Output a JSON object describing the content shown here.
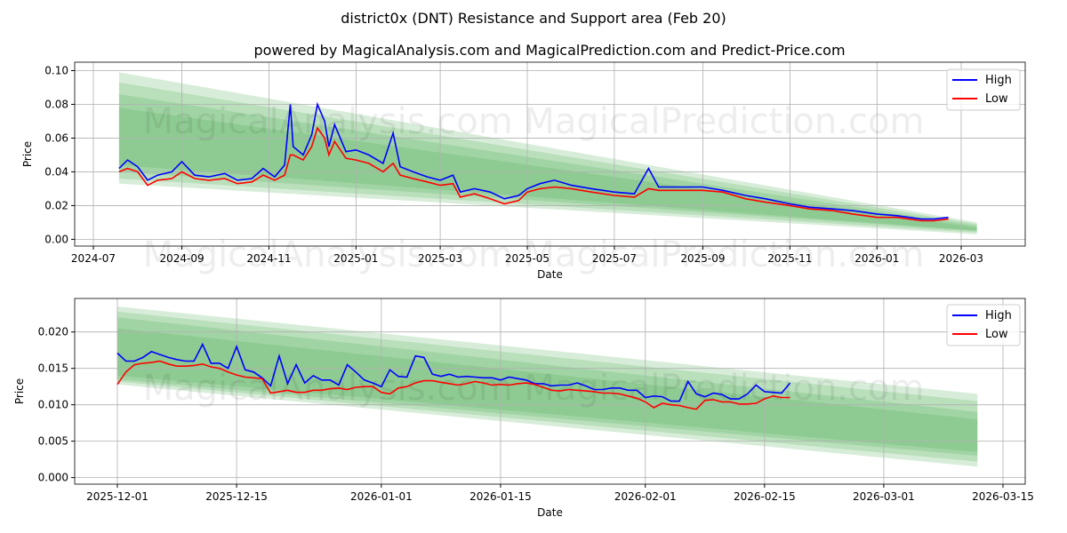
{
  "title": "district0x (DNT) Resistance and Support area (Feb 20)",
  "subtitle": "powered by MagicalAnalysis.com and MagicalPrediction.com and Predict-Price.com",
  "watermark": "MagicalAnalysis.com    MagicalPrediction.com",
  "colors": {
    "high": "#0000ff",
    "low": "#ff0000",
    "band": "#4caf50"
  },
  "chart_data": [
    {
      "type": "line",
      "xlabel": "Date",
      "ylabel": "Price",
      "ylim": [
        -0.004,
        0.105
      ],
      "yticks": [
        "0.00",
        "0.02",
        "0.04",
        "0.06",
        "0.08",
        "0.10"
      ],
      "ytick_values": [
        0,
        0.02,
        0.04,
        0.06,
        0.08,
        0.1
      ],
      "xticks": [
        "2024-07",
        "2024-09",
        "2024-11",
        "2025-01",
        "2025-03",
        "2025-05",
        "2025-07",
        "2025-09",
        "2025-11",
        "2026-01",
        "2026-03"
      ],
      "grid": true,
      "legend": "top-right",
      "legend_entries": [
        "High",
        "Low"
      ],
      "x": [
        "2024-07-19",
        "2024-07-25",
        "2024-08-01",
        "2024-08-08",
        "2024-08-15",
        "2024-08-25",
        "2024-09-01",
        "2024-09-10",
        "2024-09-20",
        "2024-10-01",
        "2024-10-10",
        "2024-10-20",
        "2024-10-28",
        "2024-11-05",
        "2024-11-12",
        "2024-11-16",
        "2024-11-18",
        "2024-11-25",
        "2024-12-01",
        "2024-12-05",
        "2024-12-10",
        "2024-12-13",
        "2024-12-17",
        "2024-12-25",
        "2025-01-01",
        "2025-01-10",
        "2025-01-20",
        "2025-01-27",
        "2025-02-01",
        "2025-02-10",
        "2025-02-20",
        "2025-03-01",
        "2025-03-10",
        "2025-03-15",
        "2025-03-25",
        "2025-04-05",
        "2025-04-15",
        "2025-04-25",
        "2025-05-01",
        "2025-05-10",
        "2025-05-20",
        "2025-06-01",
        "2025-06-15",
        "2025-07-01",
        "2025-07-15",
        "2025-07-25",
        "2025-08-01",
        "2025-08-15",
        "2025-09-01",
        "2025-09-15",
        "2025-10-01",
        "2025-10-15",
        "2025-11-01",
        "2025-11-15",
        "2025-12-01",
        "2025-12-15",
        "2026-01-01",
        "2026-01-15",
        "2026-02-01",
        "2026-02-10",
        "2026-02-20"
      ],
      "series": [
        {
          "name": "High",
          "values": [
            0.042,
            0.047,
            0.043,
            0.035,
            0.038,
            0.04,
            0.046,
            0.038,
            0.037,
            0.039,
            0.035,
            0.036,
            0.042,
            0.037,
            0.044,
            0.08,
            0.055,
            0.05,
            0.062,
            0.08,
            0.07,
            0.055,
            0.068,
            0.052,
            0.053,
            0.05,
            0.045,
            0.063,
            0.043,
            0.04,
            0.037,
            0.035,
            0.038,
            0.028,
            0.03,
            0.028,
            0.024,
            0.026,
            0.03,
            0.033,
            0.035,
            0.032,
            0.03,
            0.028,
            0.027,
            0.042,
            0.031,
            0.031,
            0.031,
            0.029,
            0.026,
            0.024,
            0.021,
            0.019,
            0.018,
            0.017,
            0.015,
            0.014,
            0.012,
            0.012,
            0.013
          ]
        },
        {
          "name": "Low",
          "values": [
            0.04,
            0.042,
            0.04,
            0.032,
            0.035,
            0.036,
            0.04,
            0.036,
            0.035,
            0.036,
            0.033,
            0.034,
            0.038,
            0.035,
            0.038,
            0.05,
            0.05,
            0.047,
            0.055,
            0.066,
            0.06,
            0.05,
            0.058,
            0.048,
            0.047,
            0.045,
            0.04,
            0.045,
            0.038,
            0.036,
            0.034,
            0.032,
            0.033,
            0.025,
            0.027,
            0.024,
            0.021,
            0.023,
            0.028,
            0.03,
            0.031,
            0.03,
            0.028,
            0.026,
            0.025,
            0.03,
            0.029,
            0.029,
            0.029,
            0.028,
            0.024,
            0.022,
            0.02,
            0.018,
            0.017,
            0.015,
            0.013,
            0.013,
            0.011,
            0.011,
            0.012
          ]
        }
      ],
      "bands": {
        "start": "2024-07-19",
        "end": "2026-03-12",
        "levels": [
          [
            0.099,
            0.033,
            0.01,
            0.003
          ],
          [
            0.093,
            0.036,
            0.009,
            0.004
          ],
          [
            0.086,
            0.04,
            0.008,
            0.005
          ],
          [
            0.078,
            0.044,
            0.007,
            0.005
          ]
        ]
      }
    },
    {
      "type": "line",
      "xlabel": "Date",
      "ylabel": "Price",
      "ylim": [
        -0.0009,
        0.0246
      ],
      "yticks": [
        "0.000",
        "0.005",
        "0.010",
        "0.015",
        "0.020"
      ],
      "ytick_values": [
        0,
        0.005,
        0.01,
        0.015,
        0.02
      ],
      "xticks": [
        "2025-12-01",
        "2025-12-15",
        "2026-01-01",
        "2026-01-15",
        "2026-02-01",
        "2026-02-15",
        "2026-03-01",
        "2026-03-15"
      ],
      "grid": true,
      "legend": "top-right",
      "legend_entries": [
        "High",
        "Low"
      ],
      "x_start": "2025-12-01",
      "x_step_days": 1,
      "series": [
        {
          "name": "High",
          "values": [
            0.0171,
            0.016,
            0.016,
            0.0165,
            0.0173,
            0.0169,
            0.0165,
            0.0162,
            0.016,
            0.016,
            0.0183,
            0.0157,
            0.0157,
            0.015,
            0.018,
            0.0148,
            0.0145,
            0.0137,
            0.0126,
            0.0167,
            0.0129,
            0.0155,
            0.013,
            0.014,
            0.0134,
            0.0134,
            0.0127,
            0.0155,
            0.0145,
            0.0134,
            0.013,
            0.0125,
            0.0148,
            0.0139,
            0.0138,
            0.0167,
            0.0165,
            0.0142,
            0.0139,
            0.0142,
            0.0138,
            0.0139,
            0.0138,
            0.0137,
            0.0137,
            0.0134,
            0.0138,
            0.0136,
            0.0134,
            0.0129,
            0.0129,
            0.0126,
            0.0127,
            0.0127,
            0.013,
            0.0126,
            0.0121,
            0.0121,
            0.0123,
            0.0123,
            0.012,
            0.012,
            0.011,
            0.0112,
            0.0111,
            0.0105,
            0.0105,
            0.0132,
            0.0115,
            0.0111,
            0.0116,
            0.0114,
            0.0108,
            0.0108,
            0.0115,
            0.0127,
            0.0118,
            0.0117,
            0.0116,
            0.013
          ]
        },
        {
          "name": "Low",
          "values": [
            0.0128,
            0.0145,
            0.0155,
            0.0157,
            0.0158,
            0.016,
            0.0156,
            0.0153,
            0.0153,
            0.0154,
            0.0156,
            0.0152,
            0.015,
            0.0145,
            0.0141,
            0.0138,
            0.0137,
            0.0136,
            0.0116,
            0.0118,
            0.012,
            0.0117,
            0.0117,
            0.012,
            0.012,
            0.0122,
            0.0123,
            0.0121,
            0.0124,
            0.0125,
            0.0125,
            0.0117,
            0.0115,
            0.0123,
            0.0125,
            0.013,
            0.0133,
            0.0133,
            0.0131,
            0.0129,
            0.0127,
            0.0129,
            0.0132,
            0.013,
            0.0127,
            0.0128,
            0.0127,
            0.0129,
            0.013,
            0.0128,
            0.0124,
            0.012,
            0.0119,
            0.0121,
            0.012,
            0.0119,
            0.0118,
            0.0116,
            0.0116,
            0.0115,
            0.0112,
            0.0109,
            0.0104,
            0.0096,
            0.0102,
            0.01,
            0.0099,
            0.0096,
            0.0094,
            0.0106,
            0.0107,
            0.0104,
            0.0104,
            0.0101,
            0.0101,
            0.0102,
            0.0108,
            0.0112,
            0.011,
            0.011
          ]
        }
      ],
      "bands": {
        "start": "2025-12-01",
        "end": "2026-03-12",
        "levels": [
          [
            0.0235,
            0.0128,
            0.0115,
            0.0015
          ],
          [
            0.0228,
            0.0132,
            0.0105,
            0.0022
          ],
          [
            0.022,
            0.0135,
            0.009,
            0.003
          ],
          [
            0.0205,
            0.014,
            0.008,
            0.0035
          ]
        ]
      }
    }
  ]
}
